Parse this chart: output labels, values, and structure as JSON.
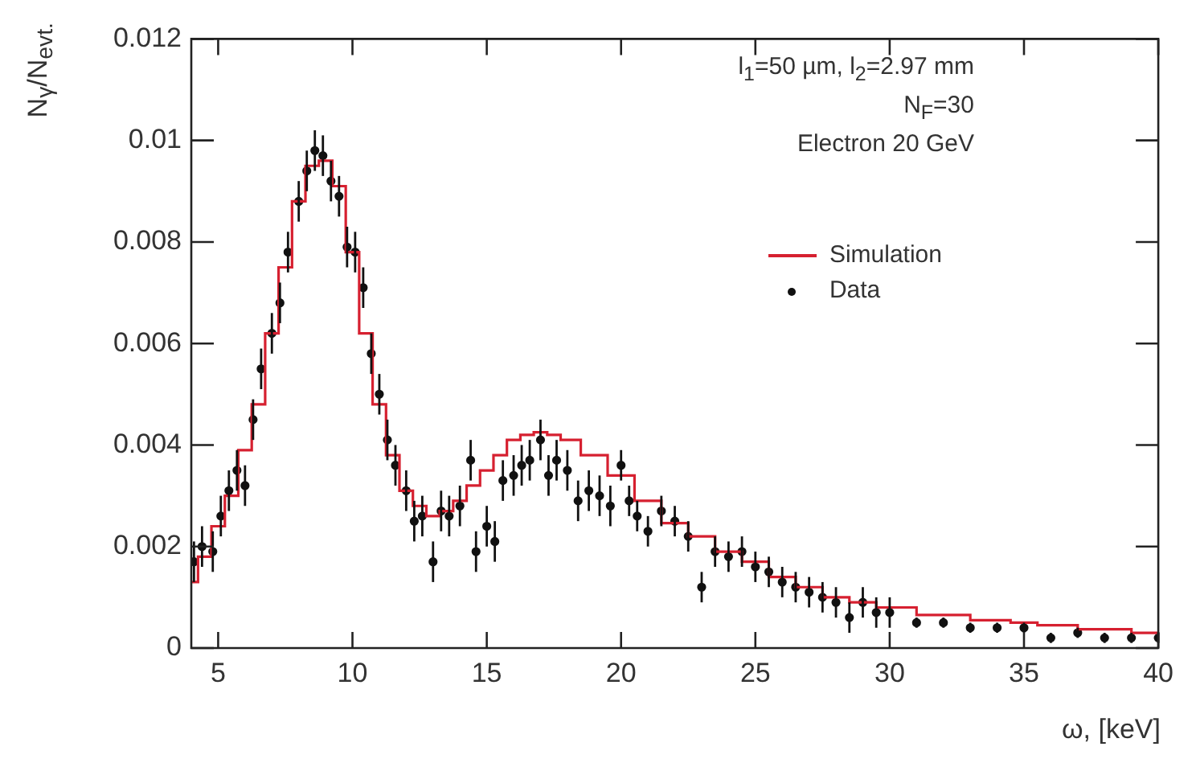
{
  "chart_data": {
    "type": "scatter",
    "xlabel": "ω, [keV]",
    "ylabel": "N$_{γ}$/N$_{evt.}$",
    "annotations": [
      "l$_{1}$=50 µm, l$_{2}$=2.97 mm",
      "N$_{F}$=30",
      "Electron 20 GeV"
    ],
    "xlim": [
      4,
      40
    ],
    "xticks": [
      5,
      10,
      15,
      20,
      25,
      30,
      35,
      40
    ],
    "ylim": [
      0,
      0.012
    ],
    "yticks": [
      0,
      0.002,
      0.004,
      0.006,
      0.008,
      0.01,
      0.012
    ],
    "legend": "top right",
    "series": [
      {
        "name": "Simulation",
        "type": "step",
        "color": "#d62030",
        "x": [
          4,
          4.5,
          5,
          5.5,
          6,
          6.5,
          7,
          7.5,
          8,
          8.5,
          9,
          9.5,
          10,
          10.5,
          11,
          11.5,
          12,
          12.5,
          13,
          13.5,
          14,
          14.5,
          15,
          15.5,
          16,
          16.5,
          17,
          17.5,
          18,
          19,
          20,
          21,
          22,
          23,
          24,
          25,
          26,
          27,
          28,
          29,
          30,
          32,
          34,
          35,
          36,
          38,
          40
        ],
        "values": [
          0.0013,
          0.0018,
          0.0024,
          0.003,
          0.0039,
          0.0048,
          0.0062,
          0.0075,
          0.0088,
          0.0095,
          0.0096,
          0.0091,
          0.0078,
          0.0062,
          0.0048,
          0.0038,
          0.0031,
          0.0028,
          0.0026,
          0.0027,
          0.0029,
          0.0032,
          0.0035,
          0.0038,
          0.0041,
          0.0042,
          0.00425,
          0.0042,
          0.0041,
          0.0038,
          0.0034,
          0.0029,
          0.00246,
          0.0022,
          0.0019,
          0.0017,
          0.0014,
          0.0012,
          0.001,
          0.0009,
          0.0008,
          0.00065,
          0.00055,
          0.0005,
          0.00045,
          0.00037,
          0.0003
        ]
      },
      {
        "name": "Data",
        "color": "#111111",
        "marker": "circle",
        "x": [
          4.1,
          4.4,
          4.8,
          5.1,
          5.4,
          5.7,
          6,
          6.3,
          6.6,
          7,
          7.3,
          7.6,
          8,
          8.3,
          8.6,
          8.9,
          9.2,
          9.5,
          9.8,
          10.1,
          10.4,
          10.7,
          11,
          11.3,
          11.6,
          12,
          12.3,
          12.6,
          13,
          13.3,
          13.6,
          14,
          14.4,
          14.6,
          15,
          15.3,
          15.6,
          16,
          16.3,
          16.6,
          17,
          17.3,
          17.6,
          18,
          18.4,
          18.8,
          19.2,
          19.6,
          20,
          20.3,
          20.6,
          21,
          21.5,
          22,
          22.5,
          23,
          23.5,
          24,
          24.5,
          25,
          25.5,
          26,
          26.5,
          27,
          27.5,
          28,
          28.5,
          29,
          29.5,
          30,
          31,
          32,
          33,
          34,
          35,
          36,
          37,
          38,
          39,
          40
        ],
        "values": [
          0.0017,
          0.002,
          0.0019,
          0.0026,
          0.0031,
          0.0035,
          0.0032,
          0.0045,
          0.0055,
          0.0062,
          0.0068,
          0.0078,
          0.0088,
          0.0094,
          0.0098,
          0.0097,
          0.0092,
          0.0089,
          0.0079,
          0.0078,
          0.0071,
          0.0058,
          0.005,
          0.0041,
          0.0036,
          0.0031,
          0.0025,
          0.0026,
          0.0017,
          0.0027,
          0.0026,
          0.0028,
          0.0037,
          0.0019,
          0.0024,
          0.0021,
          0.0033,
          0.0034,
          0.0036,
          0.0037,
          0.0041,
          0.0034,
          0.0037,
          0.0035,
          0.0029,
          0.0031,
          0.003,
          0.0028,
          0.0036,
          0.0029,
          0.0026,
          0.0023,
          0.0027,
          0.0025,
          0.0022,
          0.0012,
          0.0019,
          0.0018,
          0.0019,
          0.0016,
          0.0015,
          0.0013,
          0.0012,
          0.0011,
          0.001,
          0.0009,
          0.0006,
          0.0009,
          0.0007,
          0.0007,
          0.0005,
          0.0005,
          0.0004,
          0.0004,
          0.0004,
          0.0002,
          0.0003,
          0.0002,
          0.0002,
          0.0002
        ],
        "errors": [
          0.0004,
          0.0004,
          0.0004,
          0.0004,
          0.0004,
          0.0004,
          0.0004,
          0.0004,
          0.0004,
          0.0004,
          0.0004,
          0.0004,
          0.0004,
          0.0004,
          0.0004,
          0.0004,
          0.0004,
          0.0004,
          0.0004,
          0.0004,
          0.0004,
          0.0004,
          0.0004,
          0.0004,
          0.0004,
          0.0004,
          0.0004,
          0.0004,
          0.0004,
          0.0004,
          0.0004,
          0.0004,
          0.0004,
          0.0004,
          0.0004,
          0.0004,
          0.0004,
          0.0004,
          0.0004,
          0.0004,
          0.0004,
          0.0004,
          0.0004,
          0.0004,
          0.0004,
          0.0004,
          0.0004,
          0.0004,
          0.0003,
          0.0003,
          0.0003,
          0.0003,
          0.0003,
          0.0003,
          0.0003,
          0.0003,
          0.0003,
          0.0003,
          0.0003,
          0.0003,
          0.0003,
          0.0003,
          0.0003,
          0.0003,
          0.0003,
          0.0003,
          0.0003,
          0.0003,
          0.0003,
          0.0003,
          0.0001,
          0.0001,
          0.0001,
          0.0001,
          0.0001,
          0.0001,
          0.0001,
          0.0001,
          0.0001,
          0.0001
        ]
      }
    ]
  }
}
